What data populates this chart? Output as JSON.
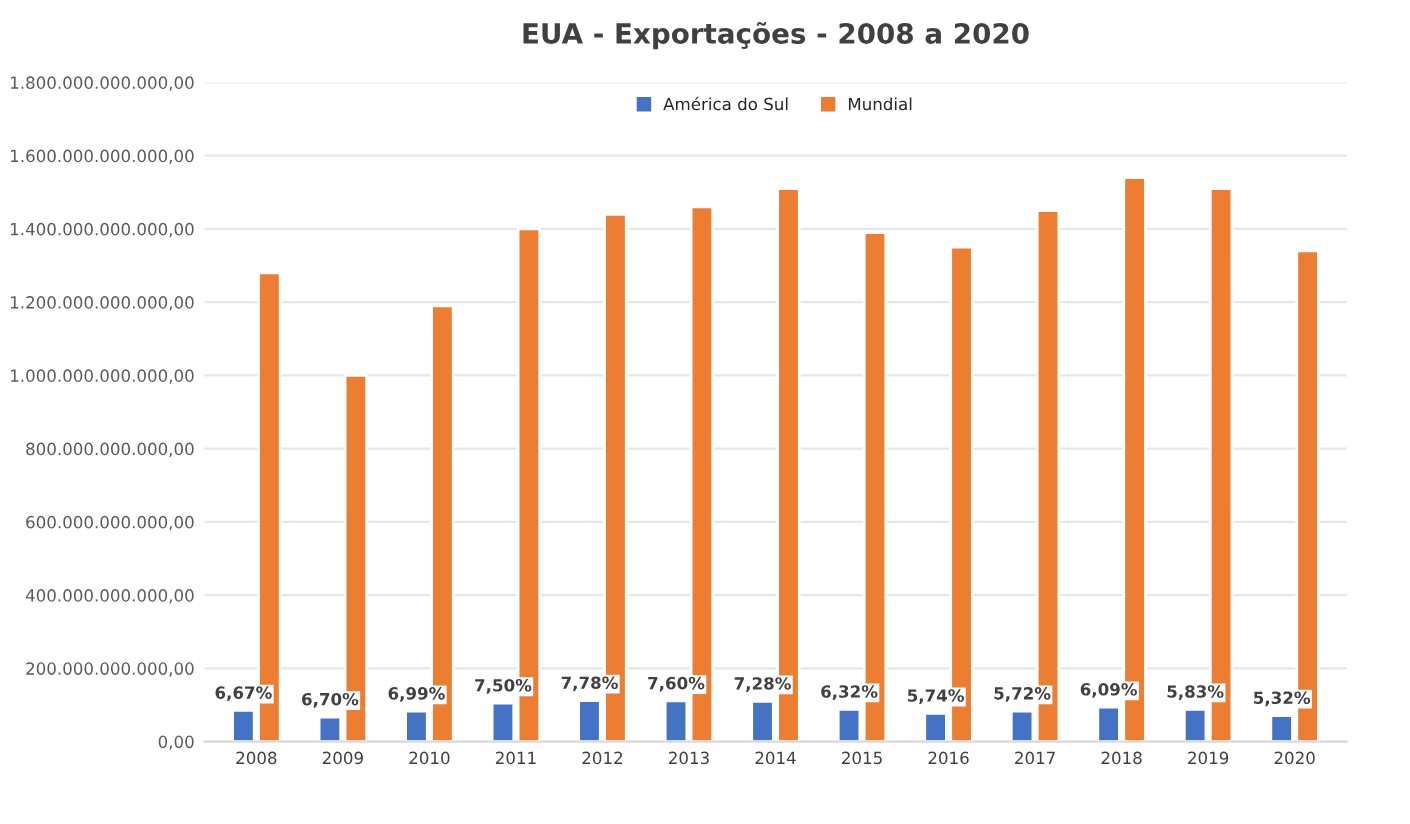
{
  "chart_data": {
    "type": "bar",
    "title": "EUA - Exportações - 2008 a 2020",
    "categories": [
      "2008",
      "2009",
      "2010",
      "2011",
      "2012",
      "2013",
      "2014",
      "2015",
      "2016",
      "2017",
      "2018",
      "2019",
      "2020"
    ],
    "series": [
      {
        "name": "América do Sul",
        "color": "#4472c4",
        "values": [
          85000000000,
          67000000000,
          83000000000,
          105000000000,
          112000000000,
          111000000000,
          110000000000,
          88000000000,
          77000000000,
          83000000000,
          94000000000,
          88000000000,
          71000000000
        ]
      },
      {
        "name": "Mundial",
        "color": "#ed7d31",
        "values": [
          1280000000000,
          1000000000000,
          1190000000000,
          1400000000000,
          1440000000000,
          1460000000000,
          1510000000000,
          1390000000000,
          1350000000000,
          1450000000000,
          1540000000000,
          1510000000000,
          1340000000000
        ]
      }
    ],
    "ylim": [
      0,
      1800000000000
    ],
    "yticks": [
      {
        "value": 0,
        "label": "0,00"
      },
      {
        "value": 200000000000,
        "label": "200.000.000.000,00"
      },
      {
        "value": 400000000000,
        "label": "400.000.000.000,00"
      },
      {
        "value": 600000000000,
        "label": "600.000.000.000,00"
      },
      {
        "value": 800000000000,
        "label": "800.000.000.000,00"
      },
      {
        "value": 1000000000000,
        "label": "1.000.000.000.000,00"
      },
      {
        "value": 1200000000000,
        "label": "1.200.000.000.000,00"
      },
      {
        "value": 1400000000000,
        "label": "1.400.000.000.000,00"
      },
      {
        "value": 1600000000000,
        "label": "1.600.000.000.000,00"
      },
      {
        "value": 1800000000000,
        "label": "1.800.000.000.000,00"
      }
    ],
    "annotations": [
      {
        "text": "6,67%",
        "x": "2008",
        "y": 85000000000
      },
      {
        "text": "6,70%",
        "x": "2009",
        "y": 67000000000
      },
      {
        "text": "6,99%",
        "x": "2010",
        "y": 83000000000
      },
      {
        "text": "7,50%",
        "x": "2011",
        "y": 105000000000
      },
      {
        "text": "7,78%",
        "x": "2012",
        "y": 112000000000
      },
      {
        "text": "7,60%",
        "x": "2013",
        "y": 111000000000
      },
      {
        "text": "7,28%",
        "x": "2014",
        "y": 110000000000
      },
      {
        "text": "6,32%",
        "x": "2015",
        "y": 88000000000
      },
      {
        "text": "5,74%",
        "x": "2016",
        "y": 77000000000
      },
      {
        "text": "5,72%",
        "x": "2017",
        "y": 83000000000
      },
      {
        "text": "6,09%",
        "x": "2018",
        "y": 94000000000
      },
      {
        "text": "5,83%",
        "x": "2019",
        "y": 88000000000
      },
      {
        "text": "5,32%",
        "x": "2020",
        "y": 71000000000
      }
    ],
    "grid": "y",
    "legend": "top"
  }
}
